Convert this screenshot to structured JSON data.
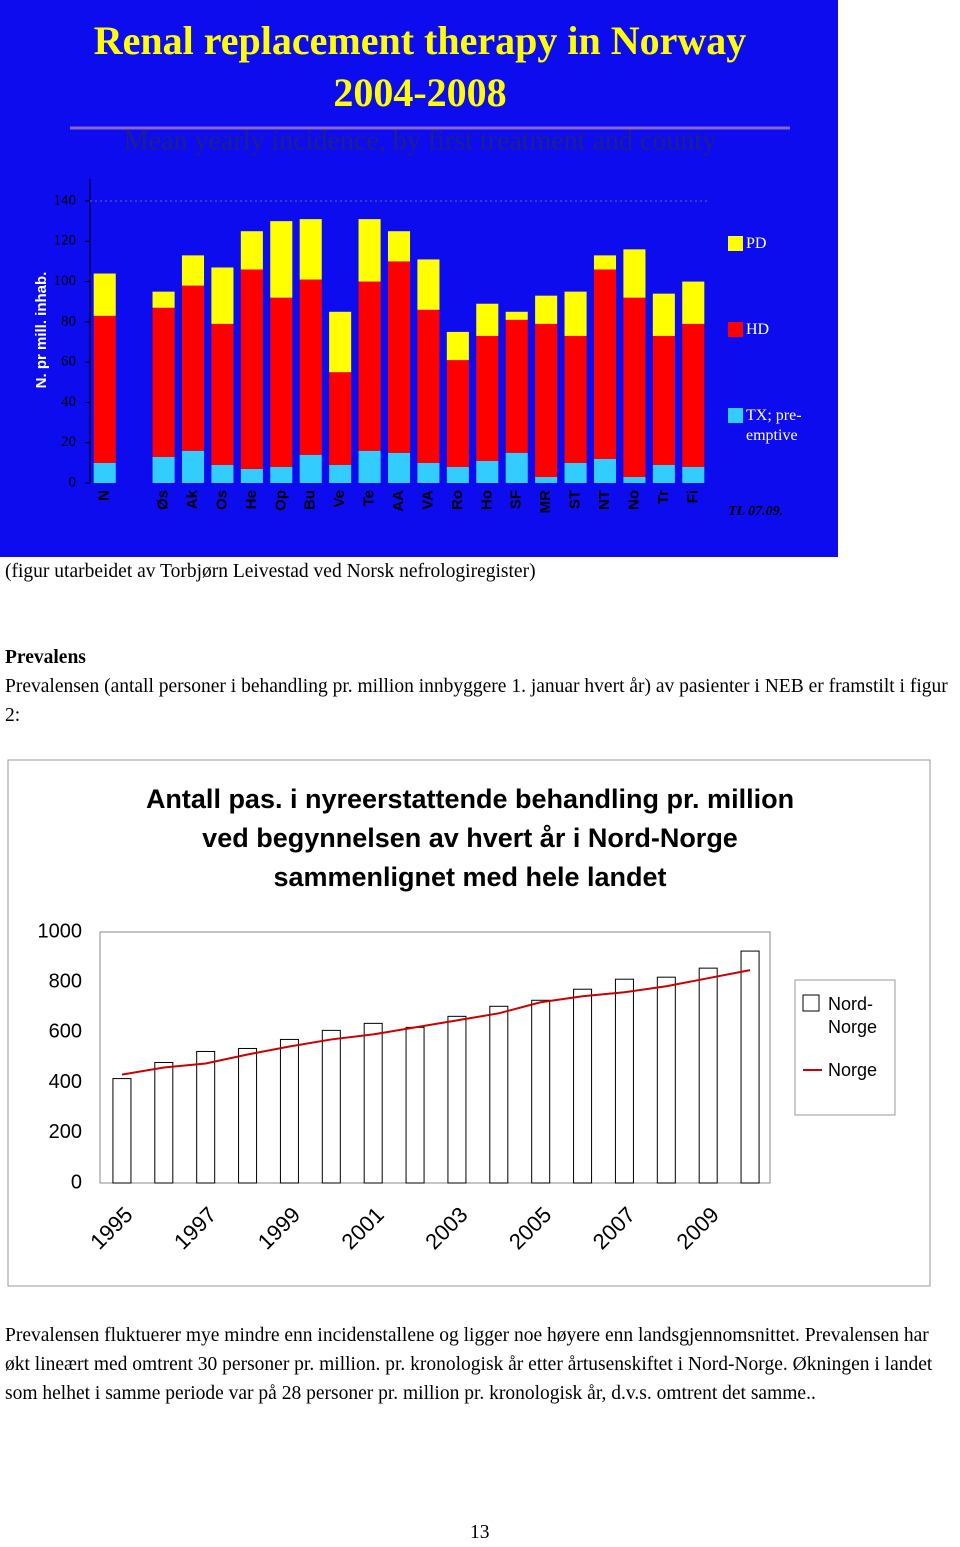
{
  "chart_data": [
    {
      "type": "bar",
      "stacked": true,
      "title": [
        "Renal replacement therapy in Norway",
        "2004-2008"
      ],
      "subtitle": "Mean yearly incidence, by first treatment and county",
      "y_label": "N. pr mill. inhab.",
      "annotation": "TL 07.09.",
      "categories": [
        "N",
        null,
        "Øs",
        "Ak",
        "Os",
        "He",
        "Op",
        "Bu",
        "Ve",
        "Te",
        "AA",
        "VA",
        "Ro",
        "Ho",
        "SF",
        "MR",
        "ST",
        "NT",
        "No",
        "Tr",
        "Fi"
      ],
      "series": [
        {
          "name": "TX; pre-emptive",
          "color": "#33ccff",
          "values": [
            10,
            null,
            13,
            16,
            9,
            7,
            8,
            14,
            9,
            16,
            15,
            10,
            8,
            11,
            15,
            3,
            10,
            12,
            3,
            9,
            8
          ]
        },
        {
          "name": "HD",
          "color": "#ff0000",
          "values": [
            73,
            null,
            74,
            82,
            70,
            99,
            84,
            87,
            46,
            84,
            95,
            76,
            53,
            62,
            66,
            76,
            63,
            94,
            89,
            64,
            71
          ]
        },
        {
          "name": "PD",
          "color": "#ffff00",
          "values": [
            21,
            null,
            8,
            15,
            28,
            19,
            38,
            30,
            30,
            31,
            15,
            25,
            14,
            16,
            4,
            14,
            22,
            7,
            24,
            21,
            21
          ]
        }
      ],
      "ylim": [
        0,
        140
      ],
      "yticks": [
        0,
        20,
        40,
        60,
        80,
        100,
        120,
        140
      ]
    },
    {
      "type": "bar",
      "title": [
        "Antall pas. i nyreerstattende behandling pr. million",
        "ved begynnelsen av hvert år i Nord-Norge",
        "sammenlignet med hele landet"
      ],
      "categories": [
        "1995",
        null,
        "1997",
        null,
        "1999",
        null,
        "2001",
        null,
        "2003",
        null,
        "2005",
        null,
        "2007",
        null,
        "2009",
        null
      ],
      "series": [
        {
          "name": "Nord-Norge",
          "kind": "bar",
          "color": "#ffffff",
          "values": [
            416,
            480,
            524,
            536,
            572,
            608,
            636,
            620,
            664,
            704,
            728,
            772,
            812,
            820,
            856,
            924
          ]
        },
        {
          "name": "Norge",
          "kind": "line",
          "color": "#cc0000",
          "values": [
            432,
            460,
            476,
            512,
            544,
            572,
            592,
            620,
            648,
            676,
            720,
            744,
            760,
            784,
            816,
            848
          ]
        }
      ],
      "ylim": [
        0,
        1000
      ],
      "yticks": [
        0,
        200,
        400,
        600,
        800,
        1000
      ]
    }
  ],
  "document": {
    "caption": "(figur utarbeidet av Torbjørn Leivestad ved Norsk nefrologiregister)",
    "heading": "Prevalens",
    "paragraphs": [
      "Prevalensen (antall personer i behandling pr. million innbyggere 1. januar hvert år) av pasienter i NEB er framstilt i figur 2:",
      "Prevalensen fluktuerer mye mindre enn incidenstallene og ligger noe høyere enn landsgjennomsnittet. Prevalensen har økt lineært med omtrent 30 personer pr. million. pr. kronologisk år etter årtusenskiftet i Nord-Norge. Økningen i landet som helhet i samme periode var på 28 personer pr. million pr. kronologisk år, d.v.s. omtrent det samme.."
    ],
    "page_number": "13"
  }
}
